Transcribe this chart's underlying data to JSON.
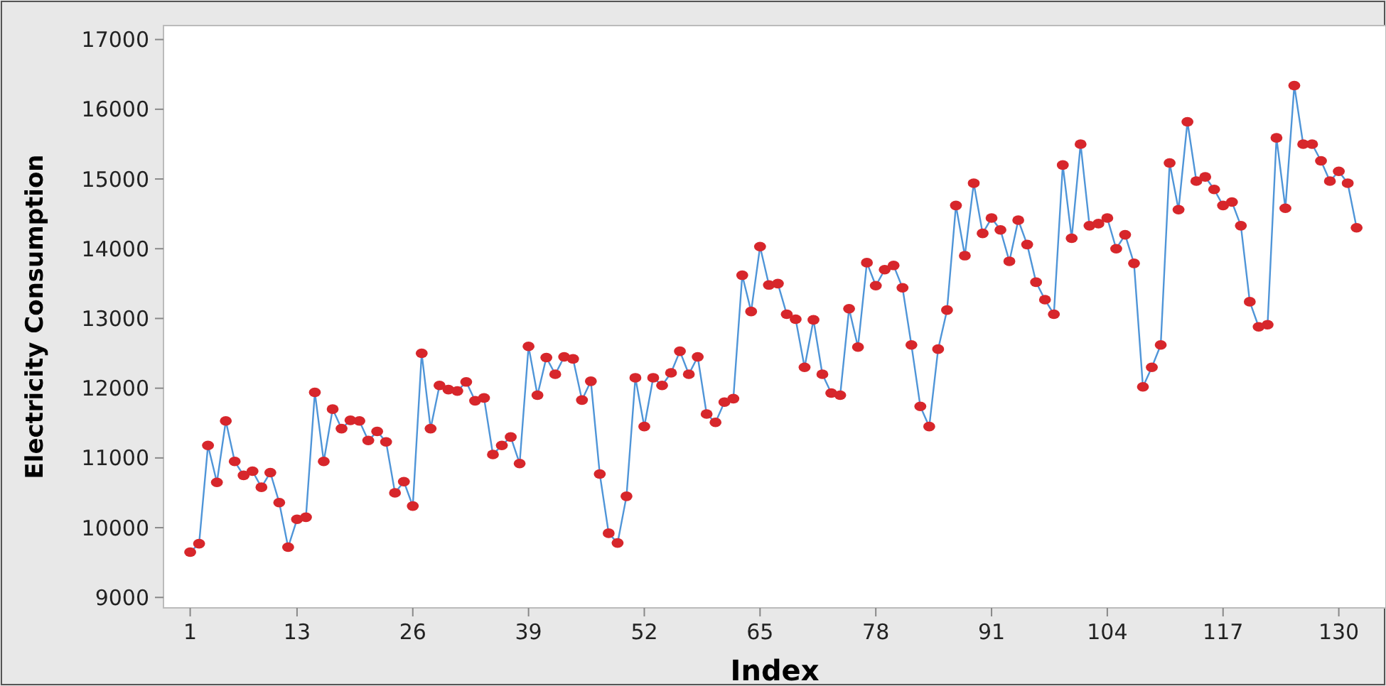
{
  "chart_data": {
    "type": "line",
    "xlabel": "Index",
    "ylabel": "Electricity Consumption",
    "x": [
      1,
      2,
      3,
      4,
      5,
      6,
      7,
      8,
      9,
      10,
      11,
      12,
      13,
      14,
      15,
      16,
      17,
      18,
      19,
      20,
      21,
      22,
      23,
      24,
      25,
      26,
      27,
      28,
      29,
      30,
      31,
      32,
      33,
      34,
      35,
      36,
      37,
      38,
      39,
      40,
      41,
      42,
      43,
      44,
      45,
      46,
      47,
      48,
      49,
      50,
      51,
      52,
      53,
      54,
      55,
      56,
      57,
      58,
      59,
      60,
      61,
      62,
      63,
      64,
      65,
      66,
      67,
      68,
      69,
      70,
      71,
      72,
      73,
      74,
      75,
      76,
      77,
      78,
      79,
      80,
      81,
      82,
      83,
      84,
      85,
      86,
      87,
      88,
      89,
      90,
      91,
      92,
      93,
      94,
      95,
      96,
      97,
      98,
      99,
      100,
      101,
      102,
      103,
      104,
      105,
      106,
      107,
      108,
      109,
      110,
      111,
      112,
      113,
      114,
      115,
      116,
      117,
      118,
      119,
      120,
      121,
      122,
      123,
      124,
      125,
      126,
      127,
      128,
      129,
      130,
      131,
      132
    ],
    "series": [
      {
        "color": "#d7262b",
        "values": [
          9650,
          9770,
          11180,
          10650,
          11530,
          10950,
          10750,
          10810,
          10580,
          10790,
          10360,
          9720,
          10120,
          10150,
          11940,
          10950,
          11700,
          11420,
          11540,
          11530,
          11250,
          11380,
          11230,
          10500,
          10660,
          10310,
          12500,
          11420,
          12040,
          11980,
          11960,
          12090,
          11820,
          11860,
          11050,
          11180,
          11300,
          10920,
          12600,
          11900,
          12440,
          12200,
          12450,
          12420,
          11830,
          12100,
          10770,
          9920,
          9780,
          10450,
          12150,
          11450,
          12150,
          12040,
          12220,
          12530,
          12200,
          12450,
          11630,
          11510,
          11800,
          11850,
          13620,
          13100,
          14030,
          13480,
          13500,
          13060,
          12990,
          12300,
          12980,
          12200,
          11930,
          11900,
          13140,
          12590,
          13800,
          13470,
          13700,
          13760,
          13440,
          12620,
          11740,
          11450,
          12560,
          13120,
          14620,
          13900,
          14940,
          14220,
          14440,
          14270,
          13820,
          14410,
          14060,
          13520,
          13270,
          13060,
          15200,
          14150,
          15500,
          14330,
          14360,
          14440,
          14000,
          14200,
          13790,
          12020,
          12300,
          12620,
          15230,
          14560,
          15820,
          14970,
          15030,
          14850,
          14620,
          14670,
          14330,
          13240,
          12880,
          12910,
          15590,
          14580,
          16340,
          15500,
          15500,
          15260,
          14970,
          15110,
          14940,
          14300
        ]
      }
    ],
    "marker": "circle",
    "xlim": [
      -2,
      135.3
    ],
    "xticks": [
      1,
      13,
      26,
      39,
      52,
      65,
      78,
      91,
      104,
      117,
      130
    ],
    "ylim": [
      8850,
      17200
    ],
    "yticks": [
      9000,
      10000,
      11000,
      12000,
      13000,
      14000,
      15000,
      16000,
      17000
    ]
  }
}
